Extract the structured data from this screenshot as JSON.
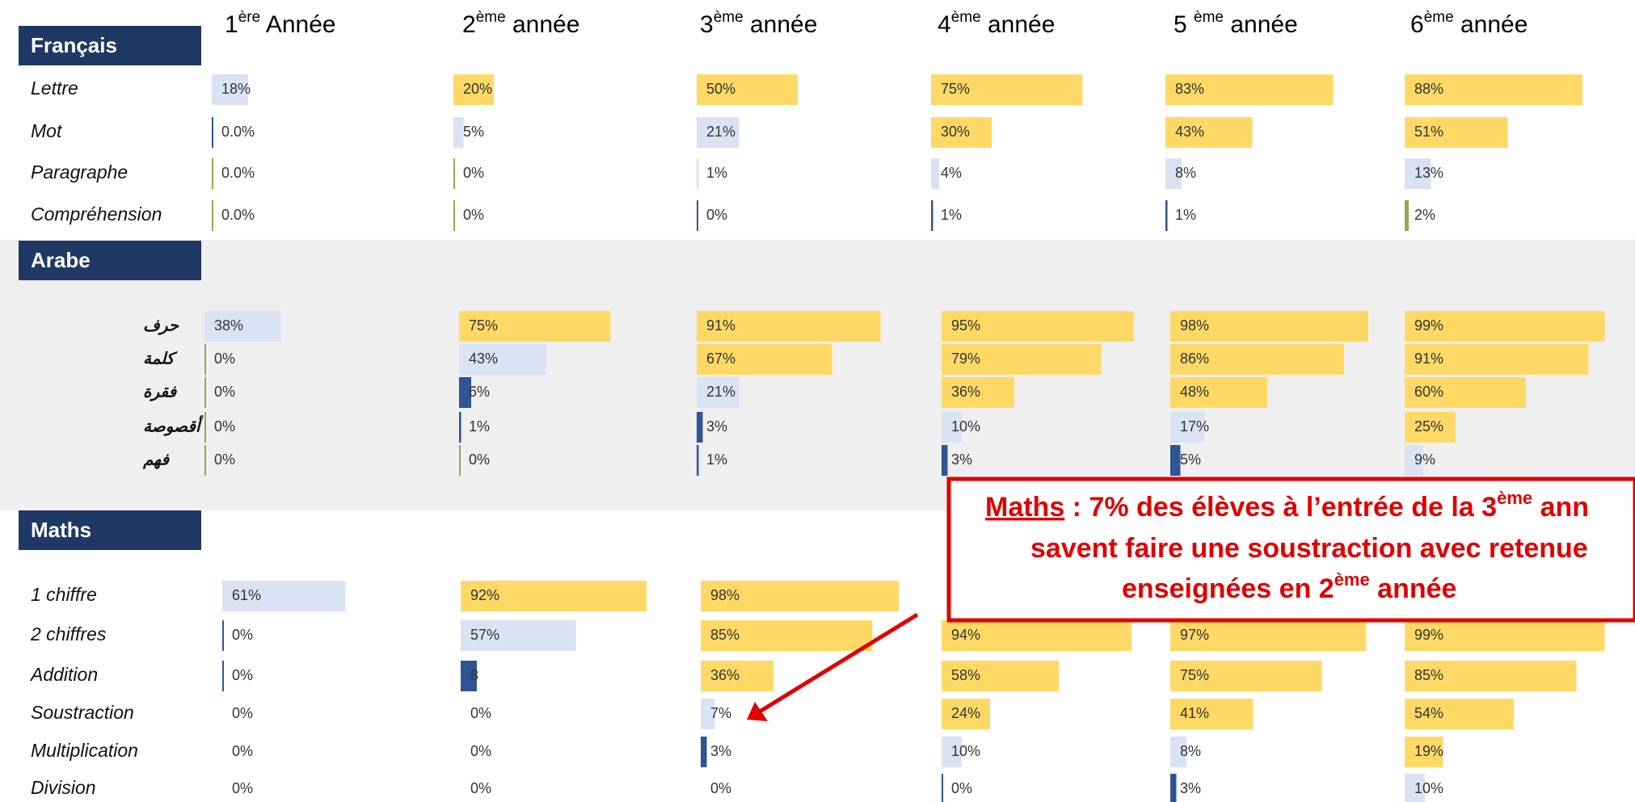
{
  "columns": [
    {
      "num": "1",
      "sup": "ère",
      "rest": " Année"
    },
    {
      "num": "2",
      "sup": "ème",
      "rest": " année"
    },
    {
      "num": "3",
      "sup": "ème",
      "rest": " année"
    },
    {
      "num": "4",
      "sup": "ème",
      "rest": " année"
    },
    {
      "num": "5 ",
      "sup": "ème",
      "rest": " année"
    },
    {
      "num": "6",
      "sup": "ème",
      "rest": " année"
    }
  ],
  "sections": [
    {
      "title": "Français",
      "rows": [
        {
          "label": "Lettre",
          "values": [
            18,
            20,
            50,
            75,
            83,
            88
          ],
          "value_labels": [
            "18%",
            "20%",
            "50%",
            "75%",
            "83%",
            "88%"
          ],
          "colors": [
            "#DAE3F3",
            "#FFD966",
            "#FFD966",
            "#FFD966",
            "#FFD966",
            "#FFD966"
          ]
        },
        {
          "label": "Mot",
          "values": [
            0,
            5,
            21,
            30,
            43,
            51
          ],
          "value_labels": [
            "0.0%",
            "5%",
            "21%",
            "30%",
            "43%",
            "51%"
          ],
          "colors": [
            "#2F5597",
            "#DAE3F3",
            "#DAE3F3",
            "#FFD966",
            "#FFD966",
            "#FFD966"
          ]
        },
        {
          "label": "Paragraphe",
          "values": [
            0,
            0,
            1,
            4,
            8,
            13
          ],
          "value_labels": [
            "0.0%",
            "0%",
            "1%",
            "4%",
            "8%",
            "13%"
          ],
          "colors": [
            "#8FAA4E",
            "#8FAA4E",
            "#DAE3F3",
            "#DAE3F3",
            "#DAE3F3",
            "#DAE3F3"
          ]
        },
        {
          "label": "Compréhension",
          "values": [
            0,
            0,
            0,
            1,
            1,
            2
          ],
          "value_labels": [
            "0.0%",
            "0%",
            "0%",
            "1%",
            "1%",
            "2%"
          ],
          "colors": [
            "#8FAA4E",
            "#8FAA4E",
            "#2F5597",
            "#2F5597",
            "#2F5597",
            "#8FAA4E"
          ]
        }
      ]
    },
    {
      "title": "Arabe",
      "rows": [
        {
          "label": "حرف",
          "values": [
            38,
            75,
            91,
            95,
            98,
            99
          ],
          "value_labels": [
            "38%",
            "75%",
            "91%",
            "95%",
            "98%",
            "99%"
          ],
          "colors": [
            "#DAE3F3",
            "#FFD966",
            "#FFD966",
            "#FFD966",
            "#FFD966",
            "#FFD966"
          ]
        },
        {
          "label": "كلمة",
          "values": [
            0,
            43,
            67,
            79,
            86,
            91
          ],
          "value_labels": [
            "0%",
            "43%",
            "67%",
            "79%",
            "86%",
            "91%"
          ],
          "colors": [
            "#8FAA4E",
            "#DAE3F3",
            "#FFD966",
            "#FFD966",
            "#FFD966",
            "#FFD966"
          ]
        },
        {
          "label": "فقرة",
          "values": [
            0,
            6,
            21,
            36,
            48,
            60
          ],
          "value_labels": [
            "0%",
            "6%",
            "21%",
            "36%",
            "48%",
            "60%"
          ],
          "colors": [
            "#8FAA4E",
            "#2F5597",
            "#DAE3F3",
            "#FFD966",
            "#FFD966",
            "#FFD966"
          ]
        },
        {
          "label": "أقصوصة",
          "values": [
            0,
            1,
            3,
            10,
            17,
            25
          ],
          "value_labels": [
            "0%",
            "1%",
            "3%",
            "10%",
            "17%",
            "25%"
          ],
          "colors": [
            "#8FAA4E",
            "#2F5597",
            "#2F5597",
            "#DAE3F3",
            "#DAE3F3",
            "#FFD966"
          ]
        },
        {
          "label": "فهم",
          "values": [
            0,
            0,
            1,
            3,
            5,
            9
          ],
          "value_labels": [
            "0%",
            "0%",
            "1%",
            "3%",
            "5%",
            "9%"
          ],
          "colors": [
            "#8FAA4E",
            "#8FAA4E",
            "#2F5597",
            "#2F5597",
            "#2F5597",
            "#DAE3F3"
          ]
        }
      ]
    },
    {
      "title": "Maths",
      "rows": [
        {
          "label": "1 chiffre",
          "values": [
            61,
            92,
            98,
            null,
            null,
            null
          ],
          "value_labels": [
            "61%",
            "92%",
            "98%",
            null,
            null,
            null
          ],
          "colors": [
            "#DAE3F3",
            "#FFD966",
            "#FFD966",
            null,
            null,
            null
          ]
        },
        {
          "label": "2 chiffres",
          "values": [
            0,
            57,
            85,
            94,
            97,
            99
          ],
          "value_labels": [
            "0%",
            "57%",
            "85%",
            "94%",
            "97%",
            "99%"
          ],
          "colors": [
            "#2F5597",
            "#DAE3F3",
            "#FFD966",
            "#FFD966",
            "#FFD966",
            "#FFD966"
          ]
        },
        {
          "label": "Addition",
          "values": [
            0,
            8,
            36,
            58,
            75,
            85
          ],
          "value_labels": [
            "0%",
            "8",
            "36%",
            "58%",
            "75%",
            "85%"
          ],
          "colors": [
            "#2F5597",
            "#2F5597",
            "#FFD966",
            "#FFD966",
            "#FFD966",
            "#FFD966"
          ]
        },
        {
          "label": "Soustraction",
          "values": [
            0,
            0,
            7,
            24,
            41,
            54
          ],
          "value_labels": [
            "0%",
            "0%",
            "7%",
            "24%",
            "41%",
            "54%"
          ],
          "colors": [
            null,
            null,
            "#DAE3F3",
            "#FFD966",
            "#FFD966",
            "#FFD966"
          ]
        },
        {
          "label": "Multiplication",
          "values": [
            0,
            0,
            3,
            10,
            8,
            19
          ],
          "value_labels": [
            "0%",
            "0%",
            "3%",
            "10%",
            "8%",
            "19%"
          ],
          "colors": [
            null,
            null,
            "#2F5597",
            "#DAE3F3",
            "#DAE3F3",
            "#FFD966"
          ]
        },
        {
          "label": "Division",
          "values": [
            0,
            0,
            0,
            0,
            3,
            10
          ],
          "value_labels": [
            "0%",
            "0%",
            "0%",
            "0%",
            "3%",
            "10%"
          ],
          "colors": [
            null,
            null,
            null,
            "#2F5597",
            "#2F5597",
            "#DAE3F3"
          ]
        }
      ]
    }
  ],
  "annotation": {
    "underlined": "Maths",
    "line1": " : 7% des élèves à l’entrée de la 3",
    "line1_sup": "ème",
    "line1_end": " ann",
    "line2": "savent faire une soustraction avec retenue",
    "line3": "enseignées en 2",
    "line3_sup": "ème",
    "line3_end": " année"
  }
}
